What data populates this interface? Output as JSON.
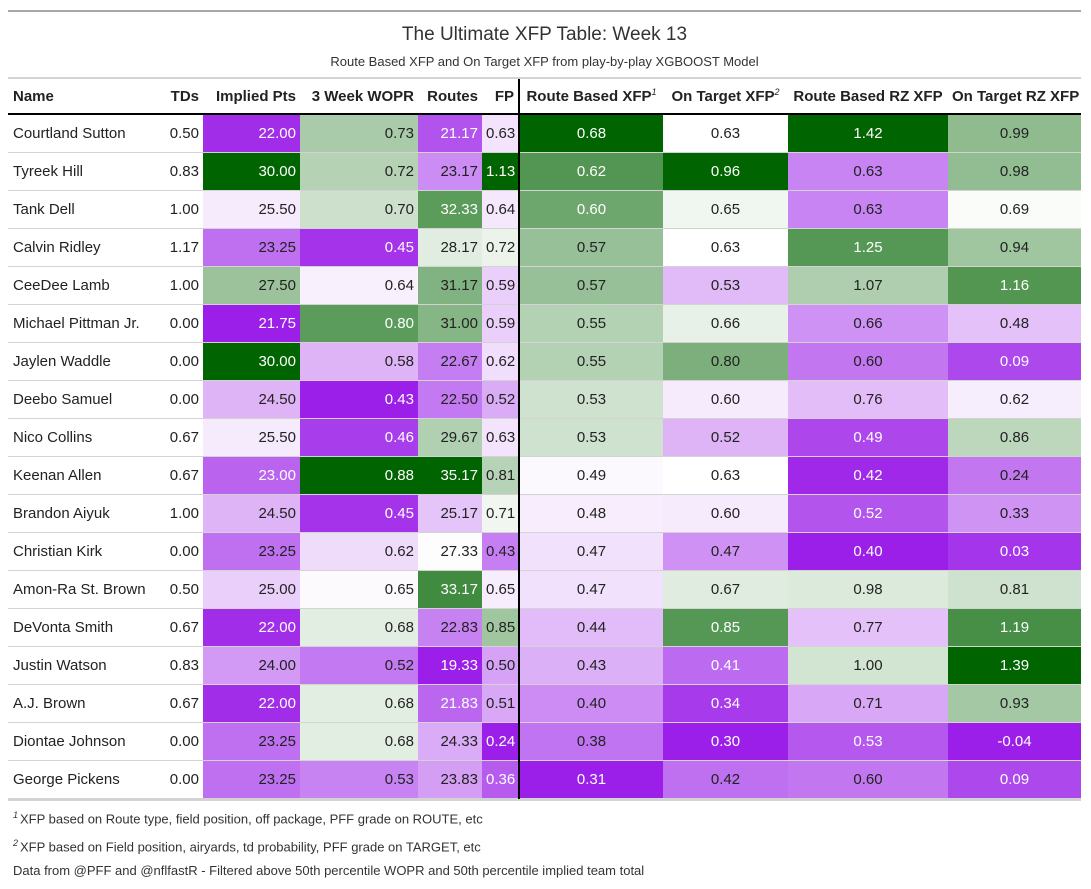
{
  "header": {
    "title": "The Ultimate XFP Table: Week 13",
    "subtitle": "Route Based XFP and On Target XFP from play-by-play XGBOOST Model"
  },
  "columns": [
    {
      "key": "name",
      "label": "Name",
      "sup": ""
    },
    {
      "key": "tds",
      "label": "TDs",
      "sup": ""
    },
    {
      "key": "implied_pts",
      "label": "Implied Pts",
      "sup": ""
    },
    {
      "key": "wopr",
      "label": "3 Week WOPR",
      "sup": ""
    },
    {
      "key": "routes",
      "label": "Routes",
      "sup": ""
    },
    {
      "key": "fp",
      "label": "FP",
      "sup": ""
    },
    {
      "key": "route_xfp",
      "label": "Route Based XFP",
      "sup": "1"
    },
    {
      "key": "target_xfp",
      "label": "On Target XFP",
      "sup": "2"
    },
    {
      "key": "route_rz_xfp",
      "label": "Route Based RZ XFP",
      "sup": ""
    },
    {
      "key": "target_rz_xfp",
      "label": "On Target RZ XFP",
      "sup": ""
    }
  ],
  "rows": [
    {
      "name": "Courtland Sutton",
      "tds": "0.50",
      "implied_pts": "22.00",
      "wopr": "0.73",
      "routes": "21.17",
      "fp": "0.63",
      "route_xfp": "0.68",
      "target_xfp": "0.63",
      "route_rz_xfp": "1.42",
      "target_rz_xfp": "0.99"
    },
    {
      "name": "Tyreek Hill",
      "tds": "0.83",
      "implied_pts": "30.00",
      "wopr": "0.72",
      "routes": "23.17",
      "fp": "1.13",
      "route_xfp": "0.62",
      "target_xfp": "0.96",
      "route_rz_xfp": "0.63",
      "target_rz_xfp": "0.98"
    },
    {
      "name": "Tank Dell",
      "tds": "1.00",
      "implied_pts": "25.50",
      "wopr": "0.70",
      "routes": "32.33",
      "fp": "0.64",
      "route_xfp": "0.60",
      "target_xfp": "0.65",
      "route_rz_xfp": "0.63",
      "target_rz_xfp": "0.69"
    },
    {
      "name": "Calvin Ridley",
      "tds": "1.17",
      "implied_pts": "23.25",
      "wopr": "0.45",
      "routes": "28.17",
      "fp": "0.72",
      "route_xfp": "0.57",
      "target_xfp": "0.63",
      "route_rz_xfp": "1.25",
      "target_rz_xfp": "0.94"
    },
    {
      "name": "CeeDee Lamb",
      "tds": "1.00",
      "implied_pts": "27.50",
      "wopr": "0.64",
      "routes": "31.17",
      "fp": "0.59",
      "route_xfp": "0.57",
      "target_xfp": "0.53",
      "route_rz_xfp": "1.07",
      "target_rz_xfp": "1.16"
    },
    {
      "name": "Michael Pittman Jr.",
      "tds": "0.00",
      "implied_pts": "21.75",
      "wopr": "0.80",
      "routes": "31.00",
      "fp": "0.59",
      "route_xfp": "0.55",
      "target_xfp": "0.66",
      "route_rz_xfp": "0.66",
      "target_rz_xfp": "0.48"
    },
    {
      "name": "Jaylen Waddle",
      "tds": "0.00",
      "implied_pts": "30.00",
      "wopr": "0.58",
      "routes": "22.67",
      "fp": "0.62",
      "route_xfp": "0.55",
      "target_xfp": "0.80",
      "route_rz_xfp": "0.60",
      "target_rz_xfp": "0.09"
    },
    {
      "name": "Deebo Samuel",
      "tds": "0.00",
      "implied_pts": "24.50",
      "wopr": "0.43",
      "routes": "22.50",
      "fp": "0.52",
      "route_xfp": "0.53",
      "target_xfp": "0.60",
      "route_rz_xfp": "0.76",
      "target_rz_xfp": "0.62"
    },
    {
      "name": "Nico Collins",
      "tds": "0.67",
      "implied_pts": "25.50",
      "wopr": "0.46",
      "routes": "29.67",
      "fp": "0.63",
      "route_xfp": "0.53",
      "target_xfp": "0.52",
      "route_rz_xfp": "0.49",
      "target_rz_xfp": "0.86"
    },
    {
      "name": "Keenan Allen",
      "tds": "0.67",
      "implied_pts": "23.00",
      "wopr": "0.88",
      "routes": "35.17",
      "fp": "0.81",
      "route_xfp": "0.49",
      "target_xfp": "0.63",
      "route_rz_xfp": "0.42",
      "target_rz_xfp": "0.24"
    },
    {
      "name": "Brandon Aiyuk",
      "tds": "1.00",
      "implied_pts": "24.50",
      "wopr": "0.45",
      "routes": "25.17",
      "fp": "0.71",
      "route_xfp": "0.48",
      "target_xfp": "0.60",
      "route_rz_xfp": "0.52",
      "target_rz_xfp": "0.33"
    },
    {
      "name": "Christian Kirk",
      "tds": "0.00",
      "implied_pts": "23.25",
      "wopr": "0.62",
      "routes": "27.33",
      "fp": "0.43",
      "route_xfp": "0.47",
      "target_xfp": "0.47",
      "route_rz_xfp": "0.40",
      "target_rz_xfp": "0.03"
    },
    {
      "name": "Amon-Ra St. Brown",
      "tds": "0.50",
      "implied_pts": "25.00",
      "wopr": "0.65",
      "routes": "33.17",
      "fp": "0.65",
      "route_xfp": "0.47",
      "target_xfp": "0.67",
      "route_rz_xfp": "0.98",
      "target_rz_xfp": "0.81"
    },
    {
      "name": "DeVonta Smith",
      "tds": "0.67",
      "implied_pts": "22.00",
      "wopr": "0.68",
      "routes": "22.83",
      "fp": "0.85",
      "route_xfp": "0.44",
      "target_xfp": "0.85",
      "route_rz_xfp": "0.77",
      "target_rz_xfp": "1.19"
    },
    {
      "name": "Justin Watson",
      "tds": "0.83",
      "implied_pts": "24.00",
      "wopr": "0.52",
      "routes": "19.33",
      "fp": "0.50",
      "route_xfp": "0.43",
      "target_xfp": "0.41",
      "route_rz_xfp": "1.00",
      "target_rz_xfp": "1.39"
    },
    {
      "name": "A.J. Brown",
      "tds": "0.67",
      "implied_pts": "22.00",
      "wopr": "0.68",
      "routes": "21.83",
      "fp": "0.51",
      "route_xfp": "0.40",
      "target_xfp": "0.34",
      "route_rz_xfp": "0.71",
      "target_rz_xfp": "0.93"
    },
    {
      "name": "Diontae Johnson",
      "tds": "0.00",
      "implied_pts": "23.25",
      "wopr": "0.68",
      "routes": "24.33",
      "fp": "0.24",
      "route_xfp": "0.38",
      "target_xfp": "0.30",
      "route_rz_xfp": "0.53",
      "target_rz_xfp": "-0.04"
    },
    {
      "name": "George Pickens",
      "tds": "0.00",
      "implied_pts": "23.25",
      "wopr": "0.53",
      "routes": "23.83",
      "fp": "0.36",
      "route_xfp": "0.31",
      "target_xfp": "0.42",
      "route_rz_xfp": "0.60",
      "target_rz_xfp": "0.09"
    }
  ],
  "footnotes": [
    {
      "sup": "1",
      "text": "XFP based on Route type, field position, off package, PFF grade on ROUTE, etc"
    },
    {
      "sup": "2",
      "text": "XFP based on Field position, airyards, td probability, PFF grade on TARGET, etc"
    },
    {
      "sup": "",
      "text": "Data from @PFF and @nflfastR - Filtered above 50th percentile WOPR and 50th percentile implied team total"
    }
  ],
  "chart_data": {
    "type": "table",
    "title": "The Ultimate XFP Table: Week 13",
    "subtitle": "Route Based XFP and On Target XFP from play-by-play XGBOOST Model",
    "colored_columns": [
      "implied_pts",
      "wopr",
      "routes",
      "fp",
      "route_xfp",
      "target_xfp",
      "route_rz_xfp",
      "target_rz_xfp"
    ],
    "color_scale": {
      "low": "#9b1fe8",
      "mid": "#ffffff",
      "high": "#006400"
    }
  }
}
